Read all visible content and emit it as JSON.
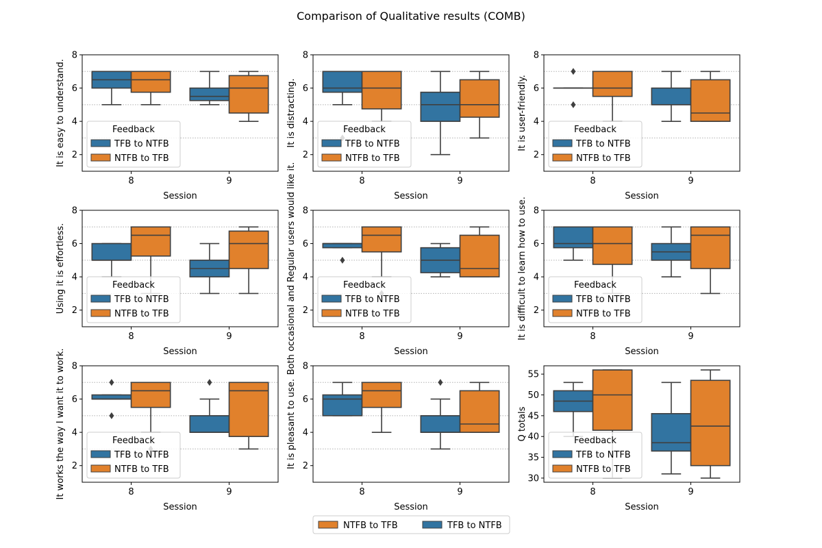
{
  "figure": {
    "title": "Comparison of Qualitative results (COMB)"
  },
  "colors": {
    "tfb_to_ntfb": "#3274a1",
    "ntfb_to_tfb": "#e1812c",
    "box_edge": "#3f3f3f",
    "ref_line": "#b0b0b0",
    "axis": "#000000"
  },
  "bottom_legend": {
    "items": [
      {
        "label": "NTFB to TFB",
        "color_key": "ntfb_to_tfb"
      },
      {
        "label": "TFB to NTFB",
        "color_key": "tfb_to_ntfb"
      }
    ]
  },
  "chart_data": [
    {
      "type": "box",
      "xlabel": "Session",
      "ylabel": "It is easy to understand.",
      "ylim": [
        1,
        8
      ],
      "yticks": [
        2,
        4,
        6,
        8
      ],
      "ref_lines": [
        3,
        5,
        7
      ],
      "categories": [
        "8",
        "9"
      ],
      "legend": {
        "title": "Feedback",
        "entries": [
          "TFB to NTFB",
          "NTFB to TFB"
        ],
        "placement": "lower-left"
      },
      "series": [
        {
          "name": "TFB to NTFB",
          "boxes": [
            {
              "whislo": 5,
              "q1": 6,
              "med": 6.5,
              "q3": 7,
              "whishi": 7,
              "fliers": []
            },
            {
              "whislo": 5,
              "q1": 5.25,
              "med": 5.5,
              "q3": 6,
              "whishi": 7,
              "fliers": []
            }
          ]
        },
        {
          "name": "NTFB to TFB",
          "boxes": [
            {
              "whislo": 5,
              "q1": 5.75,
              "med": 6.5,
              "q3": 7,
              "whishi": 7,
              "fliers": []
            },
            {
              "whislo": 4,
              "q1": 4.5,
              "med": 6,
              "q3": 6.75,
              "whishi": 7,
              "fliers": []
            }
          ]
        }
      ]
    },
    {
      "type": "box",
      "xlabel": "Session",
      "ylabel": "It is distracting.",
      "ylim": [
        1,
        8
      ],
      "yticks": [
        2,
        4,
        6,
        8
      ],
      "ref_lines": [
        3,
        5,
        7
      ],
      "categories": [
        "8",
        "9"
      ],
      "legend": {
        "title": "Feedback",
        "entries": [
          "TFB to NTFB",
          "NTFB to TFB"
        ],
        "placement": "lower-left"
      },
      "series": [
        {
          "name": "TFB to NTFB",
          "boxes": [
            {
              "whislo": 5,
              "q1": 5.75,
              "med": 6,
              "q3": 7,
              "whishi": 7,
              "fliers": [
                3
              ]
            },
            {
              "whislo": 2,
              "q1": 4,
              "med": 5,
              "q3": 5.75,
              "whishi": 7,
              "fliers": []
            }
          ]
        },
        {
          "name": "NTFB to TFB",
          "boxes": [
            {
              "whislo": 4,
              "q1": 4.75,
              "med": 6,
              "q3": 7,
              "whishi": 7,
              "fliers": []
            },
            {
              "whislo": 3,
              "q1": 4.25,
              "med": 5,
              "q3": 6.5,
              "whishi": 7,
              "fliers": []
            }
          ]
        }
      ]
    },
    {
      "type": "box",
      "xlabel": "Session",
      "ylabel": "It is user-friendly.",
      "ylim": [
        1,
        8
      ],
      "yticks": [
        2,
        4,
        6,
        8
      ],
      "ref_lines": [
        3,
        5,
        7
      ],
      "categories": [
        "8",
        "9"
      ],
      "legend": {
        "title": "Feedback",
        "entries": [
          "TFB to NTFB",
          "NTFB to TFB"
        ],
        "placement": "lower-left"
      },
      "series": [
        {
          "name": "TFB to NTFB",
          "boxes": [
            {
              "whislo": 6,
              "q1": 6,
              "med": 6,
              "q3": 6,
              "whishi": 6,
              "fliers": [
                5,
                7
              ]
            },
            {
              "whislo": 4,
              "q1": 5,
              "med": 5,
              "q3": 6,
              "whishi": 7,
              "fliers": []
            }
          ]
        },
        {
          "name": "NTFB to TFB",
          "boxes": [
            {
              "whislo": 4,
              "q1": 5.5,
              "med": 6,
              "q3": 7,
              "whishi": 7,
              "fliers": []
            },
            {
              "whislo": 4,
              "q1": 4,
              "med": 4.5,
              "q3": 6.5,
              "whishi": 7,
              "fliers": []
            }
          ]
        }
      ]
    },
    {
      "type": "box",
      "xlabel": "Session",
      "ylabel": "Using it is effortless.",
      "ylim": [
        1,
        8
      ],
      "yticks": [
        2,
        4,
        6,
        8
      ],
      "ref_lines": [
        3,
        5,
        7
      ],
      "categories": [
        "8",
        "9"
      ],
      "legend": {
        "title": "Feedback",
        "entries": [
          "TFB to NTFB",
          "NTFB to TFB"
        ],
        "placement": "lower-left"
      },
      "series": [
        {
          "name": "TFB to NTFB",
          "boxes": [
            {
              "whislo": 4,
              "q1": 5,
              "med": 5,
              "q3": 6,
              "whishi": 6,
              "fliers": []
            },
            {
              "whislo": 3,
              "q1": 4,
              "med": 4.5,
              "q3": 5,
              "whishi": 6,
              "fliers": []
            }
          ]
        },
        {
          "name": "NTFB to TFB",
          "boxes": [
            {
              "whislo": 3,
              "q1": 5.25,
              "med": 6.5,
              "q3": 7,
              "whishi": 7,
              "fliers": []
            },
            {
              "whislo": 3,
              "q1": 4.5,
              "med": 6,
              "q3": 6.75,
              "whishi": 7,
              "fliers": []
            }
          ]
        }
      ]
    },
    {
      "type": "box",
      "xlabel": "Session",
      "ylabel": "Both occasional and Regular users would like it.",
      "ylim": [
        1,
        8
      ],
      "yticks": [
        2,
        4,
        6,
        8
      ],
      "ref_lines": [
        3,
        5,
        7
      ],
      "categories": [
        "8",
        "9"
      ],
      "legend": {
        "title": "Feedback",
        "entries": [
          "TFB to NTFB",
          "NTFB to TFB"
        ],
        "placement": "lower-left"
      },
      "series": [
        {
          "name": "TFB to NTFB",
          "boxes": [
            {
              "whislo": 5.75,
              "q1": 5.75,
              "med": 6,
              "q3": 6,
              "whishi": 6,
              "fliers": [
                5
              ]
            },
            {
              "whislo": 4,
              "q1": 4.25,
              "med": 5,
              "q3": 5.75,
              "whishi": 6,
              "fliers": []
            }
          ]
        },
        {
          "name": "NTFB to TFB",
          "boxes": [
            {
              "whislo": 4,
              "q1": 5.5,
              "med": 6.5,
              "q3": 7,
              "whishi": 7,
              "fliers": [
                3
              ]
            },
            {
              "whislo": 4,
              "q1": 4,
              "med": 4.5,
              "q3": 6.5,
              "whishi": 7,
              "fliers": []
            }
          ]
        }
      ]
    },
    {
      "type": "box",
      "xlabel": "Session",
      "ylabel": "It is difficult to learn how to use.",
      "ylim": [
        1,
        8
      ],
      "yticks": [
        2,
        4,
        6,
        8
      ],
      "ref_lines": [
        3,
        5,
        7
      ],
      "categories": [
        "8",
        "9"
      ],
      "legend": {
        "title": "Feedback",
        "entries": [
          "TFB to NTFB",
          "NTFB to TFB"
        ],
        "placement": "lower-left"
      },
      "series": [
        {
          "name": "TFB to NTFB",
          "boxes": [
            {
              "whislo": 5,
              "q1": 5.75,
              "med": 6,
              "q3": 7,
              "whishi": 7,
              "fliers": []
            },
            {
              "whislo": 4,
              "q1": 5,
              "med": 5.5,
              "q3": 6,
              "whishi": 7,
              "fliers": []
            }
          ]
        },
        {
          "name": "NTFB to TFB",
          "boxes": [
            {
              "whislo": 3,
              "q1": 4.75,
              "med": 6,
              "q3": 7,
              "whishi": 7,
              "fliers": []
            },
            {
              "whislo": 3,
              "q1": 4.5,
              "med": 6.5,
              "q3": 7,
              "whishi": 7,
              "fliers": []
            }
          ]
        }
      ]
    },
    {
      "type": "box",
      "xlabel": "Session",
      "ylabel": "It works the way I want it to work.",
      "ylim": [
        1,
        8
      ],
      "yticks": [
        2,
        4,
        6,
        8
      ],
      "ref_lines": [
        3,
        5,
        7
      ],
      "categories": [
        "8",
        "9"
      ],
      "legend": {
        "title": "Feedback",
        "entries": [
          "TFB to NTFB",
          "NTFB to TFB"
        ],
        "placement": "lower-left"
      },
      "series": [
        {
          "name": "TFB to NTFB",
          "boxes": [
            {
              "whislo": 6,
              "q1": 6,
              "med": 6,
              "q3": 6.25,
              "whishi": 6.25,
              "fliers": [
                5,
                7
              ]
            },
            {
              "whislo": 4,
              "q1": 4,
              "med": 4,
              "q3": 5,
              "whishi": 6,
              "fliers": [
                7
              ]
            }
          ]
        },
        {
          "name": "NTFB to TFB",
          "boxes": [
            {
              "whislo": 4,
              "q1": 5.5,
              "med": 6.5,
              "q3": 7,
              "whishi": 7,
              "fliers": [
                3
              ]
            },
            {
              "whislo": 3,
              "q1": 3.75,
              "med": 6.5,
              "q3": 7,
              "whishi": 7,
              "fliers": []
            }
          ]
        }
      ]
    },
    {
      "type": "box",
      "xlabel": "Session",
      "ylabel": "It is pleasant to use.",
      "ylim": [
        1,
        8
      ],
      "yticks": [
        2,
        4,
        6,
        8
      ],
      "ref_lines": [
        3,
        5,
        7
      ],
      "categories": [
        "8",
        "9"
      ],
      "legend": null,
      "series": [
        {
          "name": "TFB to NTFB",
          "boxes": [
            {
              "whislo": 5,
              "q1": 5,
              "med": 6,
              "q3": 6.25,
              "whishi": 7,
              "fliers": []
            },
            {
              "whislo": 3,
              "q1": 4,
              "med": 4,
              "q3": 5,
              "whishi": 6,
              "fliers": [
                7
              ]
            }
          ]
        },
        {
          "name": "NTFB to TFB",
          "boxes": [
            {
              "whislo": 4,
              "q1": 5.5,
              "med": 6.5,
              "q3": 7,
              "whishi": 7,
              "fliers": []
            },
            {
              "whislo": 4,
              "q1": 4,
              "med": 4.5,
              "q3": 6.5,
              "whishi": 7,
              "fliers": []
            }
          ]
        }
      ]
    },
    {
      "type": "box",
      "xlabel": "Session",
      "ylabel": "Q totals",
      "ylim": [
        29,
        57
      ],
      "yticks": [
        30,
        35,
        40,
        45,
        50,
        55
      ],
      "ref_lines": [],
      "categories": [
        "8",
        "9"
      ],
      "legend": {
        "title": "Feedback",
        "entries": [
          "TFB to NTFB",
          "NTFB to TFB"
        ],
        "placement": "lower-left"
      },
      "series": [
        {
          "name": "TFB to NTFB",
          "boxes": [
            {
              "whislo": 40,
              "q1": 46,
              "med": 48.5,
              "q3": 51,
              "whishi": 53,
              "fliers": []
            },
            {
              "whislo": 31,
              "q1": 36.5,
              "med": 38.5,
              "q3": 45.5,
              "whishi": 53,
              "fliers": []
            }
          ]
        },
        {
          "name": "NTFB to TFB",
          "boxes": [
            {
              "whislo": 30,
              "q1": 41.5,
              "med": 50,
              "q3": 56,
              "whishi": 56,
              "fliers": []
            },
            {
              "whislo": 30,
              "q1": 33,
              "med": 42.5,
              "q3": 53.5,
              "whishi": 56,
              "fliers": []
            }
          ]
        }
      ]
    }
  ]
}
